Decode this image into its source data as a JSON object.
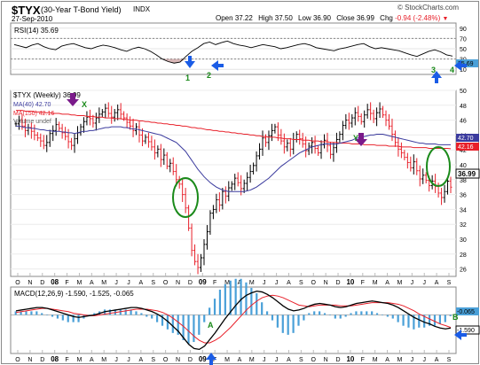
{
  "header": {
    "symbol": "$TYX",
    "description": "(30-Year T-Bond Yield)",
    "exchange": "INDX",
    "date": "27-Sep-2010",
    "quote": {
      "open_label": "Open",
      "open": "37.22",
      "high_label": "High",
      "high": "37.50",
      "low_label": "Low",
      "low": "36.90",
      "close_label": "Close",
      "close": "36.99",
      "chg_label": "Chg",
      "chg": "-0.94 (-2.48%)"
    },
    "watermark": "© StockCharts.com"
  },
  "colors": {
    "price_up": "#000000",
    "price_down": "#e8202a",
    "ma40": "#3b3b9e",
    "ma150": "#e8202a",
    "macd": "#000000",
    "macd_signal": "#e8202a",
    "histogram": "#4aa0d8",
    "annotation_arrow_blue": "#1a5ce6",
    "annotation_arrow_purple": "#7a1a8a",
    "annotation_ellipse": "#1a8a1a",
    "annotation_text": "#1a8a1a"
  },
  "chart_data": [
    {
      "type": "line",
      "panel": "rsi",
      "legend": "RSI(14) 35.69",
      "ylim": [
        0,
        100
      ],
      "yticks": [
        10,
        30,
        50,
        70,
        90
      ],
      "reference_lines": [
        30,
        70
      ],
      "last_value_label": "35.69",
      "series": [
        {
          "name": "RSI(14)",
          "values": [
            58,
            55,
            52,
            57,
            60,
            54,
            50,
            48,
            55,
            58,
            60,
            56,
            52,
            50,
            54,
            57,
            55,
            52,
            48,
            45,
            50,
            53,
            50,
            45,
            38,
            30,
            25,
            22,
            24,
            35,
            45,
            52,
            60,
            63,
            58,
            62,
            65,
            60,
            57,
            55,
            52,
            55,
            58,
            56,
            54,
            50,
            52,
            55,
            58,
            60,
            57,
            52,
            50,
            48,
            46,
            50,
            52,
            55,
            58,
            60,
            54,
            50,
            52,
            50,
            48,
            46,
            42,
            38,
            35,
            40,
            45,
            48,
            44,
            38,
            35.69
          ]
        }
      ]
    },
    {
      "type": "ohlc",
      "panel": "price",
      "legend": [
        "$TYX (Weekly) 36.99",
        "MA(40) 42.70",
        "MA(150) 42.16",
        "Volume undef"
      ],
      "ylim": [
        25,
        50
      ],
      "yticks": [
        26,
        28,
        30,
        32,
        34,
        36,
        38,
        40,
        42,
        44,
        46,
        48,
        50
      ],
      "last_value_labels": [
        "42.70",
        "42.16",
        "36.99"
      ],
      "x_ticks": [
        "O",
        "N",
        "D",
        "08",
        "F",
        "M",
        "A",
        "M",
        "J",
        "J",
        "A",
        "S",
        "O",
        "N",
        "D",
        "09",
        "F",
        "M",
        "A",
        "M",
        "J",
        "J",
        "A",
        "S",
        "O",
        "N",
        "D",
        "10",
        "F",
        "M",
        "A",
        "M",
        "J",
        "J",
        "A",
        "S"
      ],
      "weekly_close": [
        45.5,
        46.0,
        45.2,
        44.6,
        45.0,
        44.5,
        44.0,
        43.6,
        43.2,
        42.6,
        43.0,
        44.2,
        44.6,
        45.4,
        44.9,
        44.3,
        43.8,
        43.1,
        42.6,
        43.5,
        44.3,
        45.1,
        45.8,
        46.4,
        46.2,
        45.6,
        46.3,
        46.8,
        47.1,
        47.6,
        46.9,
        46.4,
        47.0,
        47.4,
        46.8,
        46.3,
        45.7,
        45.2,
        44.6,
        45.1,
        44.0,
        43.2,
        43.7,
        43.1,
        42.4,
        41.6,
        42.1,
        40.7,
        41.3,
        39.8,
        40.2,
        39.1,
        38.0,
        37.4,
        36.0,
        34.2,
        31.5,
        28.5,
        27.0,
        26.2,
        27.5,
        29.3,
        31.0,
        33.5,
        34.0,
        35.3,
        34.6,
        36.4,
        35.8,
        36.9,
        37.4,
        38.2,
        37.6,
        36.8,
        37.5,
        38.3,
        39.1,
        39.9,
        41.2,
        42.1,
        43.6,
        43.0,
        43.9,
        44.6,
        45.1,
        44.0,
        43.2,
        42.4,
        42.9,
        42.1,
        43.4,
        44.1,
        43.5,
        42.8,
        41.9,
        42.5,
        43.0,
        42.2,
        41.6,
        42.7,
        43.3,
        42.6,
        41.4,
        42.3,
        43.4,
        44.1,
        45.3,
        46.0,
        45.6,
        46.3,
        47.0,
        46.5,
        45.8,
        46.7,
        47.4,
        46.9,
        46.2,
        47.0,
        47.5,
        46.7,
        46.0,
        45.2,
        44.1,
        43.0,
        42.1,
        41.6,
        41.0,
        40.3,
        39.6,
        40.4,
        39.2,
        38.1,
        38.6,
        37.9,
        37.2,
        37.8,
        37.1,
        36.2,
        35.6,
        36.4,
        37.8,
        36.99
      ],
      "ma40": [
        45.2,
        45.2,
        45.1,
        45.0,
        45.0,
        44.9,
        44.9,
        44.8,
        44.7,
        44.7,
        44.6,
        44.6,
        44.5,
        44.5,
        44.5,
        44.4,
        44.4,
        44.3,
        44.3,
        44.2,
        44.3,
        44.4,
        44.5,
        44.5,
        44.6,
        44.6,
        44.7,
        44.8,
        44.9,
        45.0,
        45.0,
        45.1,
        45.1,
        45.1,
        45.1,
        45.0,
        45.0,
        44.9,
        44.8,
        44.8,
        44.7,
        44.6,
        44.5,
        44.4,
        44.3,
        44.2,
        44.1,
        44.0,
        43.8,
        43.6,
        43.4,
        43.2,
        43.0,
        42.6,
        42.2,
        41.8,
        41.2,
        40.6,
        40.0,
        39.4,
        38.9,
        38.4,
        38.0,
        37.6,
        37.3,
        37.0,
        36.8,
        36.6,
        36.5,
        36.4,
        36.4,
        36.4,
        36.4,
        36.4,
        36.4,
        36.5,
        36.6,
        36.8,
        37.0,
        37.3,
        37.6,
        37.9,
        38.2,
        38.6,
        39.0,
        39.4,
        39.8,
        40.1,
        40.4,
        40.7,
        41.0,
        41.3,
        41.6,
        41.8,
        42.0,
        42.2,
        42.4,
        42.5,
        42.6,
        42.7,
        42.8,
        42.8,
        42.8,
        42.8,
        42.8,
        42.9,
        43.0,
        43.1,
        43.2,
        43.3,
        43.5,
        43.6,
        43.7,
        43.8,
        43.9,
        44.0,
        44.0,
        44.1,
        44.1,
        44.1,
        44.0,
        43.9,
        43.8,
        43.7,
        43.6,
        43.5,
        43.4,
        43.3,
        43.2,
        43.1,
        43.0,
        42.9,
        42.9,
        42.8,
        42.8,
        42.8,
        42.8,
        42.7,
        42.7,
        42.7,
        42.7,
        42.7
      ],
      "ma150": [
        47.3,
        47.3,
        47.3,
        47.2,
        47.2,
        47.2,
        47.1,
        47.1,
        47.1,
        47.0,
        47.0,
        47.0,
        46.9,
        46.9,
        46.9,
        46.8,
        46.8,
        46.8,
        46.7,
        46.7,
        46.6,
        46.6,
        46.6,
        46.5,
        46.5,
        46.5,
        46.4,
        46.4,
        46.4,
        46.3,
        46.3,
        46.3,
        46.2,
        46.2,
        46.2,
        46.1,
        46.1,
        46.0,
        46.0,
        46.0,
        45.9,
        45.9,
        45.8,
        45.8,
        45.7,
        45.7,
        45.6,
        45.6,
        45.5,
        45.5,
        45.4,
        45.4,
        45.3,
        45.3,
        45.2,
        45.2,
        45.1,
        45.0,
        45.0,
        44.9,
        44.9,
        44.8,
        44.7,
        44.7,
        44.6,
        44.6,
        44.5,
        44.5,
        44.4,
        44.4,
        44.3,
        44.3,
        44.2,
        44.2,
        44.1,
        44.1,
        44.0,
        44.0,
        43.9,
        43.9,
        43.8,
        43.8,
        43.7,
        43.7,
        43.7,
        43.6,
        43.6,
        43.5,
        43.5,
        43.5,
        43.4,
        43.4,
        43.4,
        43.3,
        43.3,
        43.3,
        43.2,
        43.2,
        43.2,
        43.1,
        43.1,
        43.1,
        43.0,
        43.0,
        43.0,
        42.9,
        42.9,
        42.9,
        42.9,
        42.8,
        42.8,
        42.8,
        42.8,
        42.7,
        42.7,
        42.7,
        42.7,
        42.6,
        42.6,
        42.6,
        42.6,
        42.5,
        42.5,
        42.5,
        42.5,
        42.4,
        42.4,
        42.4,
        42.4,
        42.3,
        42.3,
        42.3,
        42.3,
        42.3,
        42.2,
        42.2,
        42.2,
        42.2,
        42.2,
        42.2,
        42.2,
        42.16
      ]
    },
    {
      "type": "line",
      "panel": "macd",
      "legend": "MACD(12,26,9) -1.590, -1.525, -0.065",
      "last_value_labels": [
        "-0.065",
        "-1.590"
      ],
      "series": [
        {
          "name": "MACD(12,26,9)",
          "values": [
            0.5,
            0.6,
            0.7,
            0.8,
            0.9,
            0.9,
            0.8,
            0.6,
            0.4,
            0.2,
            0.0,
            -0.2,
            -0.3,
            -0.2,
            -0.1,
            0.0,
            0.2,
            0.4,
            0.5,
            0.6,
            0.7,
            0.8,
            0.9,
            0.9,
            0.8,
            0.6,
            0.4,
            0.1,
            -0.3,
            -0.8,
            -1.4,
            -2.0,
            -2.8,
            -3.6,
            -4.1,
            -4.2,
            -3.8,
            -3.0,
            -2.2,
            -1.3,
            -0.4,
            0.4,
            1.2,
            1.9,
            2.4,
            2.7,
            2.9,
            2.8,
            2.5,
            2.1,
            1.6,
            1.1,
            0.7,
            0.5,
            0.6,
            0.8,
            1.1,
            1.3,
            1.4,
            1.3,
            1.2,
            1.0,
            0.9,
            1.0,
            1.2,
            1.4,
            1.5,
            1.6,
            1.7,
            1.6,
            1.5,
            1.4,
            1.2,
            0.9,
            0.5,
            0.1,
            -0.3,
            -0.6,
            -0.9,
            -1.1,
            -1.4,
            -1.6,
            -1.7,
            -1.59
          ]
        },
        {
          "name": "Signal",
          "values": [
            0.3,
            0.4,
            0.5,
            0.6,
            0.7,
            0.8,
            0.8,
            0.7,
            0.6,
            0.5,
            0.4,
            0.2,
            0.1,
            0.0,
            -0.1,
            -0.1,
            0.0,
            0.1,
            0.2,
            0.3,
            0.4,
            0.5,
            0.6,
            0.7,
            0.7,
            0.7,
            0.6,
            0.5,
            0.3,
            0.0,
            -0.4,
            -0.9,
            -1.4,
            -2.0,
            -2.6,
            -3.1,
            -3.4,
            -3.4,
            -3.1,
            -2.7,
            -2.1,
            -1.5,
            -0.8,
            -0.1,
            0.6,
            1.2,
            1.7,
            2.1,
            2.3,
            2.4,
            2.3,
            2.1,
            1.8,
            1.5,
            1.2,
            1.1,
            1.0,
            1.1,
            1.2,
            1.2,
            1.2,
            1.2,
            1.1,
            1.1,
            1.1,
            1.2,
            1.3,
            1.4,
            1.5,
            1.5,
            1.5,
            1.5,
            1.4,
            1.3,
            1.1,
            0.8,
            0.5,
            0.1,
            -0.2,
            -0.5,
            -0.8,
            -1.1,
            -1.3,
            -1.525
          ]
        }
      ]
    }
  ],
  "annotations": {
    "rsi_labels": [
      "1",
      "2",
      "3",
      "4"
    ],
    "price_labels": [
      "X",
      "Y"
    ],
    "macd_labels": [
      "A",
      "B"
    ]
  }
}
